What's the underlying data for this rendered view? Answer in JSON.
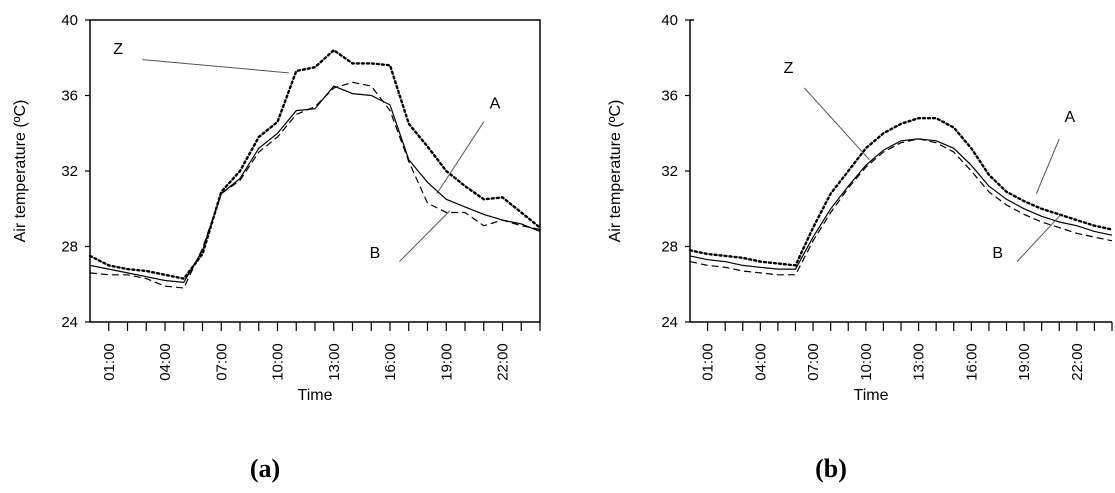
{
  "chart_data": [
    {
      "id": "a",
      "type": "line",
      "caption": "(a)",
      "xlabel": "Time",
      "ylabel": "Air temperature   (ºC)",
      "ylim": [
        24,
        40
      ],
      "yticks": [
        24,
        28,
        32,
        36,
        40
      ],
      "xlim": [
        0,
        24
      ],
      "xtick_labels": [
        "01:00",
        "04:00",
        "07:00",
        "10:00",
        "13:00",
        "16:00",
        "19:00",
        "22:00"
      ],
      "xtick_positions": [
        1,
        4,
        7,
        10,
        13,
        16,
        19,
        22
      ],
      "grid": false,
      "series": [
        {
          "name": "Z",
          "style": "dotted",
          "x": [
            0,
            1,
            2,
            3,
            4,
            5,
            6,
            7,
            8,
            9,
            10,
            11,
            12,
            13,
            14,
            15,
            16,
            17,
            18,
            19,
            20,
            21,
            22,
            23,
            24
          ],
          "y": [
            27.5,
            27.0,
            26.8,
            26.7,
            26.5,
            26.3,
            27.6,
            30.9,
            32.0,
            33.8,
            34.6,
            37.3,
            37.5,
            38.4,
            37.7,
            37.7,
            37.6,
            34.5,
            33.3,
            32.0,
            31.2,
            30.5,
            30.6,
            29.8,
            29.0
          ]
        },
        {
          "name": "A",
          "style": "solid",
          "x": [
            0,
            1,
            2,
            3,
            4,
            5,
            6,
            7,
            8,
            9,
            10,
            11,
            12,
            13,
            14,
            15,
            16,
            17,
            18,
            19,
            20,
            21,
            22,
            23,
            24
          ],
          "y": [
            27.0,
            26.8,
            26.6,
            26.4,
            26.2,
            26.1,
            27.8,
            30.8,
            31.6,
            33.2,
            34.0,
            35.2,
            35.3,
            36.5,
            36.1,
            36.0,
            35.5,
            32.6,
            31.4,
            30.5,
            30.1,
            29.7,
            29.4,
            29.2,
            28.8
          ]
        },
        {
          "name": "B",
          "style": "dashed",
          "x": [
            0,
            1,
            2,
            3,
            4,
            5,
            6,
            7,
            8,
            9,
            10,
            11,
            12,
            13,
            14,
            15,
            16,
            17,
            18,
            19,
            20,
            21,
            22,
            23,
            24
          ],
          "y": [
            26.6,
            26.5,
            26.5,
            26.3,
            25.9,
            25.8,
            27.9,
            30.8,
            31.5,
            33.0,
            33.8,
            35.0,
            35.4,
            36.4,
            36.7,
            36.5,
            35.2,
            32.5,
            30.3,
            29.8,
            29.8,
            29.1,
            29.4,
            29.1,
            28.9
          ]
        }
      ],
      "labels": [
        {
          "text": "Z",
          "tx": 1.5,
          "ty": 38.2,
          "lx": [
            2.8,
            10.6
          ],
          "ly": [
            37.9,
            37.2
          ]
        },
        {
          "text": "A",
          "tx": 21.6,
          "ty": 35.3,
          "lx": [
            21.0,
            18.5
          ],
          "ly": [
            34.6,
            30.8
          ]
        },
        {
          "text": "B",
          "tx": 15.2,
          "ty": 27.4,
          "lx": [
            16.5,
            19.2
          ],
          "ly": [
            27.2,
            29.9
          ]
        }
      ]
    },
    {
      "id": "b",
      "type": "line",
      "caption": "(b)",
      "xlabel": "Time",
      "ylabel": "Air temperature   (ºC)",
      "ylim": [
        24,
        40
      ],
      "yticks": [
        24,
        28,
        32,
        36,
        40
      ],
      "xlim": [
        0,
        24
      ],
      "xtick_labels": [
        "01:00",
        "04:00",
        "07:00",
        "10:00",
        "13:00",
        "16:00",
        "19:00",
        "22:00"
      ],
      "xtick_positions": [
        1,
        4,
        7,
        10,
        13,
        16,
        19,
        22
      ],
      "grid": false,
      "series": [
        {
          "name": "Z",
          "style": "dotted",
          "x": [
            0,
            1,
            2,
            3,
            4,
            5,
            6,
            7,
            8,
            9,
            10,
            11,
            12,
            13,
            14,
            15,
            16,
            17,
            18,
            19,
            20,
            21,
            22,
            23,
            24
          ],
          "y": [
            27.8,
            27.6,
            27.5,
            27.4,
            27.2,
            27.1,
            27.0,
            29.0,
            30.8,
            32.0,
            33.2,
            34.0,
            34.5,
            34.8,
            34.8,
            34.3,
            33.2,
            31.8,
            30.9,
            30.4,
            30.0,
            29.7,
            29.4,
            29.1,
            28.9
          ]
        },
        {
          "name": "A",
          "style": "solid",
          "x": [
            0,
            1,
            2,
            3,
            4,
            5,
            6,
            7,
            8,
            9,
            10,
            11,
            12,
            13,
            14,
            15,
            16,
            17,
            18,
            19,
            20,
            21,
            22,
            23,
            24
          ],
          "y": [
            27.5,
            27.3,
            27.2,
            27.0,
            26.9,
            26.8,
            26.8,
            28.5,
            30.0,
            31.2,
            32.3,
            33.1,
            33.6,
            33.7,
            33.6,
            33.2,
            32.3,
            31.2,
            30.5,
            30.0,
            29.6,
            29.3,
            29.1,
            28.8,
            28.6
          ]
        },
        {
          "name": "B",
          "style": "dashed",
          "x": [
            0,
            1,
            2,
            3,
            4,
            5,
            6,
            7,
            8,
            9,
            10,
            11,
            12,
            13,
            14,
            15,
            16,
            17,
            18,
            19,
            20,
            21,
            22,
            23,
            24
          ],
          "y": [
            27.2,
            27.0,
            26.9,
            26.7,
            26.6,
            26.5,
            26.5,
            28.3,
            29.8,
            31.1,
            32.2,
            33.0,
            33.5,
            33.7,
            33.5,
            33.0,
            32.0,
            30.9,
            30.2,
            29.7,
            29.3,
            29.0,
            28.7,
            28.5,
            28.3
          ]
        }
      ],
      "labels": [
        {
          "text": "Z",
          "tx": 5.6,
          "ty": 37.2,
          "lx": [
            6.5,
            10.2
          ],
          "ly": [
            36.4,
            32.6
          ]
        },
        {
          "text": "A",
          "tx": 21.6,
          "ty": 34.6,
          "lx": [
            21.0,
            19.7
          ],
          "ly": [
            33.7,
            30.8
          ]
        },
        {
          "text": "B",
          "tx": 17.5,
          "ty": 27.4,
          "lx": [
            18.6,
            21.1
          ],
          "ly": [
            27.2,
            29.7
          ]
        }
      ]
    }
  ]
}
